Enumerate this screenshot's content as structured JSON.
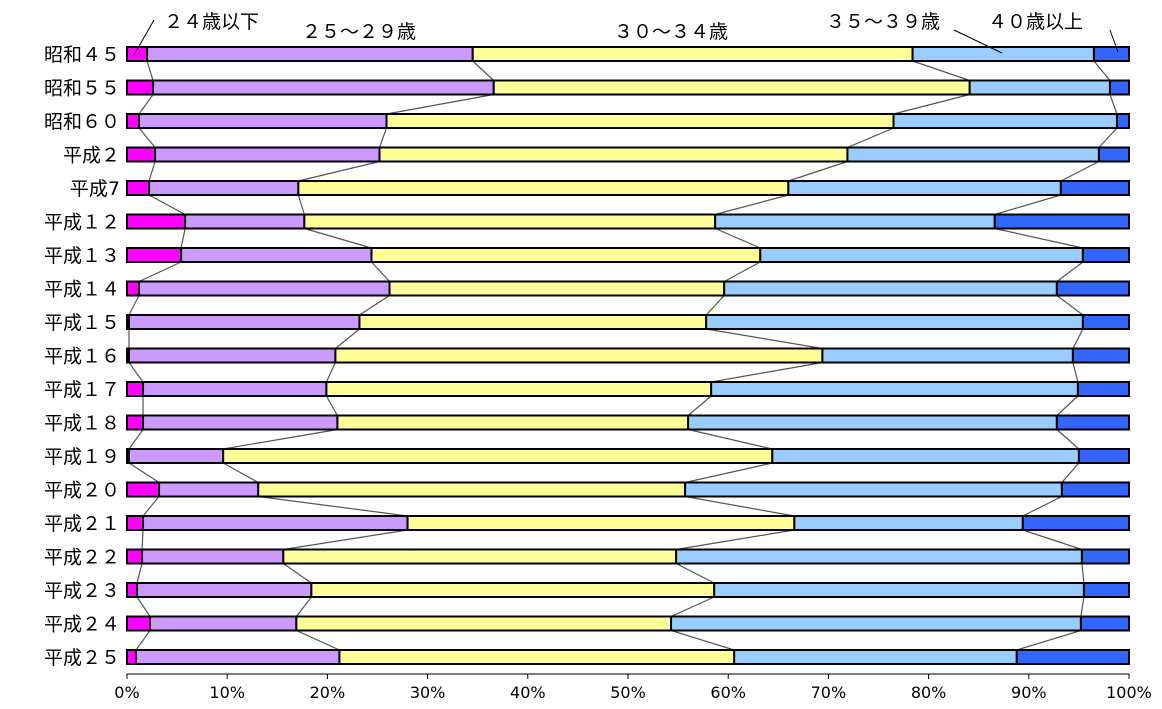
{
  "chart_data": {
    "type": "bar",
    "orientation": "horizontal",
    "stacked": true,
    "percent": true,
    "categories": [
      "昭和４５",
      "昭和５５",
      "昭和６０",
      "平成２",
      "平成7",
      "平成１２",
      "平成１３",
      "平成１４",
      "平成１５",
      "平成１６",
      "平成１７",
      "平成１８",
      "平成１９",
      "平成２０",
      "平成２１",
      "平成２２",
      "平成２３",
      "平成２４",
      "平成２５"
    ],
    "series": [
      {
        "name": "２４歳以下",
        "color": "#ff00ff",
        "values": [
          2.0,
          2.6,
          1.2,
          2.8,
          2.2,
          5.8,
          5.4,
          1.2,
          0.2,
          0.2,
          1.6,
          1.6,
          0.2,
          3.2,
          1.6,
          1.5,
          1.0,
          2.3,
          0.9
        ]
      },
      {
        "name": "２５～２９歳",
        "color": "#cc99ff",
        "values": [
          32.5,
          34.0,
          24.7,
          22.4,
          14.9,
          11.9,
          19.0,
          25.0,
          23.0,
          20.6,
          18.3,
          19.4,
          9.4,
          9.9,
          26.4,
          14.1,
          17.4,
          14.6,
          20.3
        ]
      },
      {
        "name": "３０～３４歳",
        "color": "#ffff99",
        "values": [
          43.9,
          47.5,
          50.6,
          46.7,
          48.9,
          41.0,
          38.8,
          33.4,
          34.6,
          48.6,
          38.4,
          35.0,
          54.8,
          42.6,
          38.6,
          39.2,
          40.2,
          37.4,
          39.4
        ]
      },
      {
        "name": "３５～３９歳",
        "color": "#99ccff",
        "values": [
          18.1,
          14.0,
          22.3,
          25.1,
          27.2,
          27.9,
          32.2,
          33.2,
          37.6,
          25.0,
          36.6,
          36.8,
          30.6,
          37.6,
          22.8,
          40.5,
          36.9,
          40.9,
          28.2
        ]
      },
      {
        "name": "４０歳以上",
        "color": "#3366ff",
        "values": [
          3.5,
          1.9,
          1.2,
          3.0,
          6.8,
          13.4,
          4.6,
          7.2,
          4.6,
          5.6,
          5.1,
          7.2,
          5.0,
          6.7,
          10.6,
          4.7,
          4.5,
          4.8,
          11.2
        ]
      }
    ],
    "x_ticks": [
      "0%",
      "10%",
      "20%",
      "30%",
      "40%",
      "50%",
      "60%",
      "70%",
      "80%",
      "90%",
      "100%"
    ],
    "xlim": [
      0,
      100
    ],
    "grid": false,
    "legend": "labels above bars with leader lines"
  }
}
